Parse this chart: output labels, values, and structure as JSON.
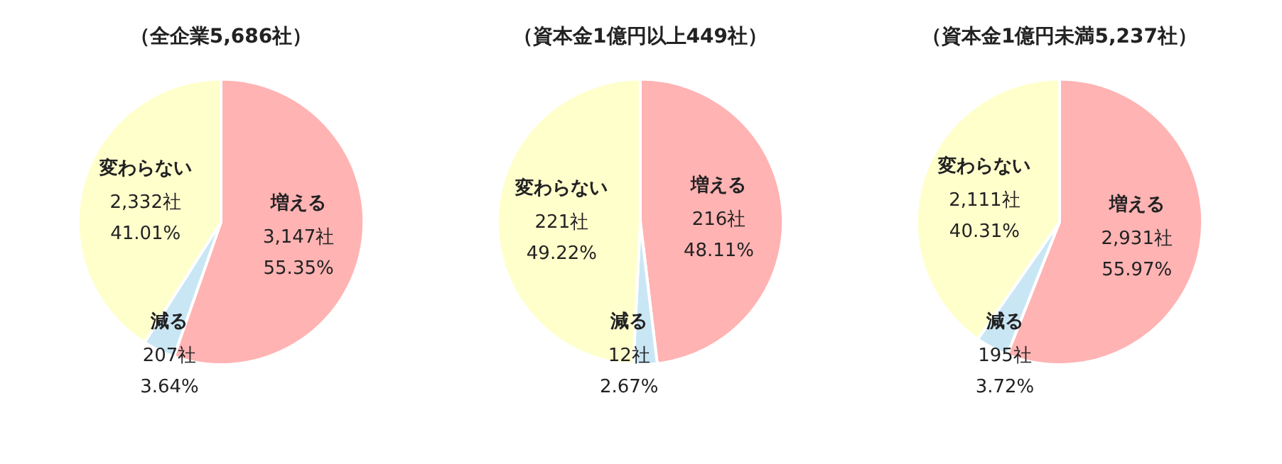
{
  "chart_data": [
    {
      "type": "pie",
      "title": "（全企業5,686社）",
      "categories": [
        "増える",
        "減る",
        "変わらない"
      ],
      "values": [
        3147,
        207,
        2332
      ],
      "colors": [
        "#ffb3b3",
        "#c9e6f5",
        "#ffffcc"
      ],
      "value_labels": [
        "3,147社\n55.35%",
        "207社\n3.64%",
        "2,332社\n41.01%"
      ],
      "legend": false
    },
    {
      "type": "pie",
      "title": "（資本金1億円以上449社）",
      "categories": [
        "増える",
        "減る",
        "変わらない"
      ],
      "values": [
        216,
        12,
        221
      ],
      "colors": [
        "#ffb3b3",
        "#c9e6f5",
        "#ffffcc"
      ],
      "value_labels": [
        "216社\n48.11%",
        "12社\n2.67%",
        "221社\n49.22%"
      ],
      "legend": false
    },
    {
      "type": "pie",
      "title": "（資本金1億円未満5,237社）",
      "categories": [
        "増える",
        "減る",
        "変わらない"
      ],
      "values": [
        2931,
        195,
        2111
      ],
      "colors": [
        "#ffb3b3",
        "#c9e6f5",
        "#ffffcc"
      ],
      "value_labels": [
        "2,931社\n55.97%",
        "195社\n3.72%",
        "2,111社\n40.31%"
      ],
      "legend": false
    }
  ]
}
